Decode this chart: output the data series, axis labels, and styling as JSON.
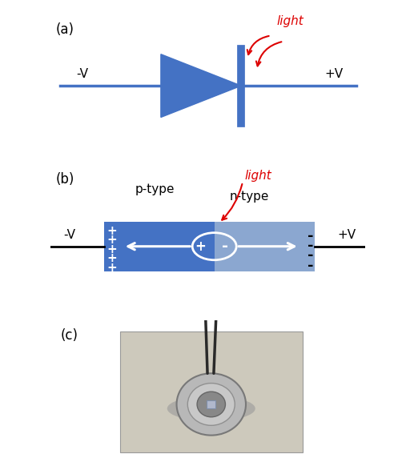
{
  "bg_color": "#ffffff",
  "blue_dark": "#4472C4",
  "blue_light": "#8BA7D0",
  "label_color": "#000000",
  "red_color": "#dd0000",
  "white": "#ffffff",
  "panel_a": {
    "label": "(a)",
    "minus_v": "-V",
    "plus_v": "+V",
    "light_label": "light"
  },
  "panel_b": {
    "label": "(b)",
    "minus_v": "-V",
    "plus_v": "+V",
    "p_type": "p-type",
    "n_type": "n-type",
    "light_label": "light"
  },
  "panel_c": {
    "label": "(c)"
  }
}
